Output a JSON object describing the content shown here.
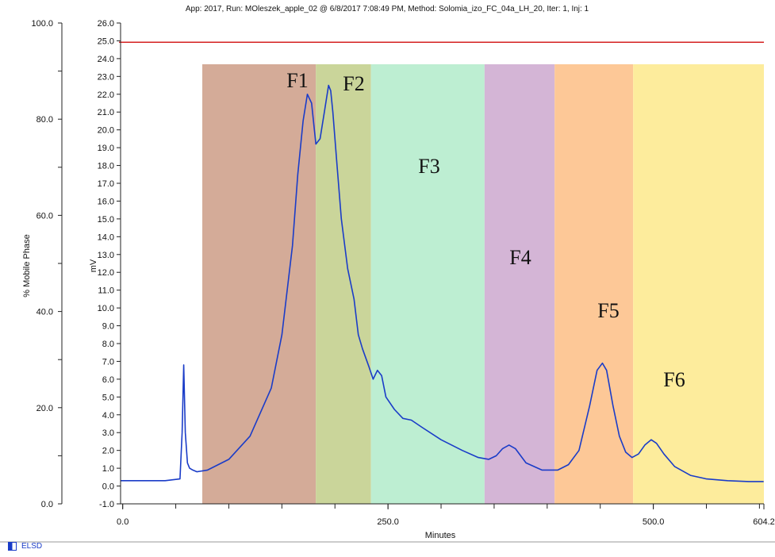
{
  "chart_data": {
    "type": "line",
    "title": "App: 2017, Run: MOleszek_apple_02 @ 6/8/2017 7:08:49 PM, Method: Solomia_izo_FC_04a_LH_20, Iter: 1, Inj: 1",
    "xlabel": "Minutes",
    "ylabel_left": "% Mobile Phase",
    "ylabel_mv": "mV",
    "xlim": [
      -2,
      604.2
    ],
    "ylim_mv": [
      -1.0,
      26.0
    ],
    "ylim_phase": [
      0.0,
      100.0
    ],
    "x_ticks": [
      "0.0",
      "250.0",
      "500.0",
      "604.2"
    ],
    "x_tick_values": [
      0,
      250,
      500,
      604.2
    ],
    "mv_ticks": [
      "-1.0",
      "0.0",
      "1.0",
      "2.0",
      "3.0",
      "4.0",
      "5.0",
      "6.0",
      "7.0",
      "8.0",
      "9.0",
      "10.0",
      "11.0",
      "12.0",
      "13.0",
      "14.0",
      "15.0",
      "16.0",
      "17.0",
      "18.0",
      "19.0",
      "20.0",
      "21.0",
      "22.0",
      "23.0",
      "24.0",
      "25.0",
      "26.0"
    ],
    "phase_ticks": [
      "0.0",
      "20.0",
      "40.0",
      "60.0",
      "80.0",
      "100.0"
    ],
    "mobile_phase_percent": 96.0,
    "fractions": [
      {
        "label": "F1",
        "x_start": 75,
        "x_end": 182,
        "color": "#d4ab98"
      },
      {
        "label": "F2",
        "x_start": 182,
        "x_end": 234,
        "color": "#cad59a"
      },
      {
        "label": "F3",
        "x_start": 234,
        "x_end": 341,
        "color": "#bdeed2"
      },
      {
        "label": "F4",
        "x_start": 341,
        "x_end": 407,
        "color": "#d4b5d6"
      },
      {
        "label": "F5",
        "x_start": 407,
        "x_end": 481,
        "color": "#fdc897"
      },
      {
        "label": "F6",
        "x_start": 481,
        "x_end": 604.2,
        "color": "#fdec9c"
      }
    ],
    "series": [
      {
        "name": "ELSD",
        "color": "#1a3cc8",
        "x": [
          -2,
          20,
          40,
          54,
          56,
          57.5,
          59,
          61,
          63,
          66,
          70,
          80,
          100,
          120,
          140,
          150,
          160,
          165,
          170,
          174,
          178,
          182,
          186,
          190,
          194,
          196,
          198,
          202,
          206,
          212,
          218,
          222,
          226,
          232,
          236,
          240,
          244,
          248,
          256,
          264,
          272,
          282,
          300,
          320,
          335,
          345,
          352,
          358,
          364,
          370,
          380,
          395,
          410,
          420,
          430,
          440,
          447,
          452,
          456,
          462,
          468,
          474,
          480,
          486,
          492,
          498,
          503,
          510,
          520,
          535,
          550,
          570,
          590,
          604
        ],
        "y": [
          0.3,
          0.3,
          0.3,
          0.4,
          3.0,
          6.8,
          3.0,
          1.3,
          1.0,
          0.9,
          0.8,
          0.9,
          1.5,
          2.8,
          5.5,
          8.5,
          13.5,
          17.5,
          20.5,
          22.0,
          21.5,
          19.2,
          19.5,
          21.0,
          22.5,
          22.2,
          21.0,
          18.0,
          15.0,
          12.2,
          10.5,
          8.5,
          7.7,
          6.7,
          6.0,
          6.5,
          6.2,
          5.0,
          4.3,
          3.8,
          3.7,
          3.3,
          2.6,
          2.0,
          1.6,
          1.5,
          1.7,
          2.1,
          2.3,
          2.1,
          1.3,
          0.9,
          0.9,
          1.2,
          2.0,
          4.5,
          6.5,
          6.9,
          6.5,
          4.5,
          2.8,
          1.9,
          1.6,
          1.8,
          2.3,
          2.6,
          2.4,
          1.8,
          1.1,
          0.6,
          0.4,
          0.3,
          0.25,
          0.25
        ]
      }
    ],
    "legend_position": "bottom-left"
  }
}
